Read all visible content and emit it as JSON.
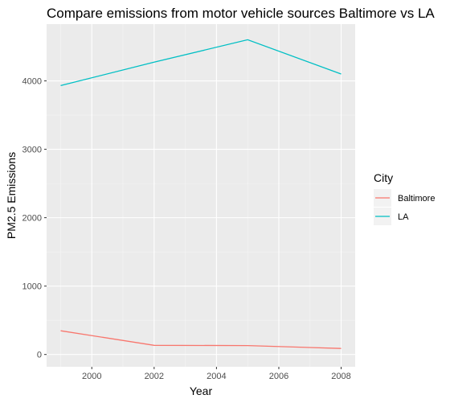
{
  "chart_data": {
    "type": "line",
    "title": "Compare emissions from motor vehicle sources Baltimore vs LA",
    "xlabel": "Year",
    "ylabel": "PM2.5 Emissions",
    "x": [
      1999,
      2002,
      2005,
      2008
    ],
    "xlim": [
      1998.55,
      2008.45
    ],
    "ylim": [
      -180,
      4830
    ],
    "x_ticks": [
      "2000",
      "2002",
      "2004",
      "2006",
      "2008"
    ],
    "y_ticks": [
      "0",
      "1000",
      "2000",
      "3000",
      "4000"
    ],
    "grid": true,
    "legend": {
      "title": "City",
      "position": "right"
    },
    "series": [
      {
        "name": "Baltimore",
        "color": "#F8766D",
        "values": [
          347,
          134,
          130,
          88
        ]
      },
      {
        "name": "LA",
        "color": "#00BFC4",
        "values": [
          3931,
          4274,
          4602,
          4101
        ]
      }
    ]
  }
}
